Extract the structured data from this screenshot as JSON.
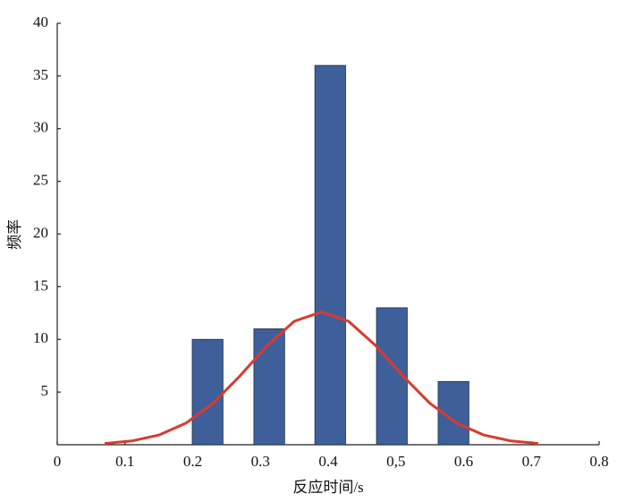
{
  "chart_data": {
    "type": "bar",
    "x_label": "反应时间/s",
    "y_label": "频率",
    "x": [
      0.222,
      0.313,
      0.403,
      0.494,
      0.585
    ],
    "values": [
      10,
      11,
      36,
      13,
      6
    ],
    "color": "#3f5f9a",
    "xlim": [
      0,
      0.8
    ],
    "xticks": [
      0,
      0.1,
      0.2,
      0.3,
      0.4,
      {
        "value": 0.5,
        "label": "0,5"
      },
      0.6,
      0.7,
      0.8
    ],
    "ylim": [
      0,
      40
    ],
    "yticks": [
      5,
      10,
      15,
      20,
      25,
      30,
      35,
      40
    ],
    "overlay": {
      "type": "line",
      "color": "#d93a2f",
      "x": [
        0.07,
        0.11,
        0.15,
        0.19,
        0.23,
        0.27,
        0.31,
        0.35,
        0.39,
        0.43,
        0.47,
        0.51,
        0.55,
        0.59,
        0.63,
        0.67,
        0.71
      ],
      "values": [
        0.12,
        0.36,
        0.92,
        2.05,
        3.94,
        6.55,
        9.42,
        11.72,
        12.6,
        11.72,
        9.42,
        6.55,
        3.94,
        2.05,
        0.92,
        0.36,
        0.12
      ]
    }
  }
}
